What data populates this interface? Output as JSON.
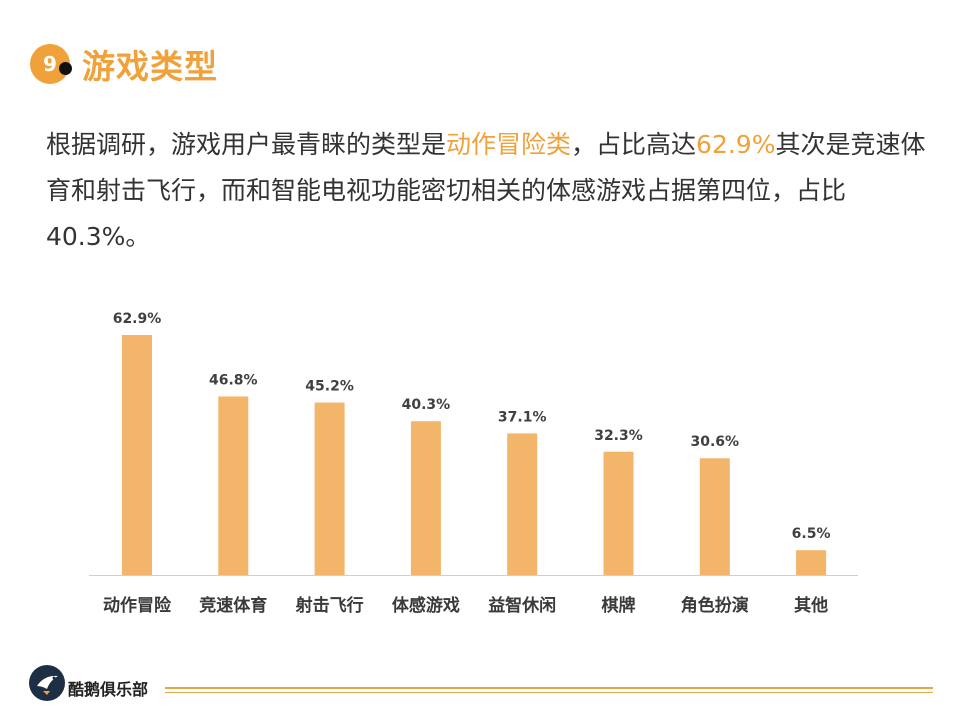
{
  "header": {
    "badge": "9",
    "title": "游戏类型"
  },
  "summary": {
    "p1": "根据调研，游戏用户最青睐的类型是",
    "h1": "动作冒险类",
    "p2": "，占比高达",
    "h2": "62.9%",
    "p3": "其次是竞速体育和射击飞行，而和智能电视功能密切相关的体感游戏占据第四位，占比40.3%。"
  },
  "colors": {
    "accent": "#f0a13a",
    "bar": "#f3b56a",
    "axis": "#cfcfcf"
  },
  "chart_data": {
    "type": "bar",
    "categories": [
      "动作冒险",
      "竞速体育",
      "射击飞行",
      "体感游戏",
      "益智休闲",
      "棋牌",
      "角色扮演",
      "其他"
    ],
    "values": [
      62.9,
      46.8,
      45.2,
      40.3,
      37.1,
      32.3,
      30.6,
      6.5
    ],
    "labels": [
      "62.9%",
      "46.8%",
      "45.2%",
      "40.3%",
      "37.1%",
      "32.3%",
      "30.6%",
      "6.5%"
    ],
    "unit": "%",
    "ylim": [
      0,
      70
    ],
    "grid": false,
    "legend": "none"
  },
  "footer": {
    "brand": "酷鹅俱乐部",
    "logo_icon": "penguin-logo-icon"
  }
}
